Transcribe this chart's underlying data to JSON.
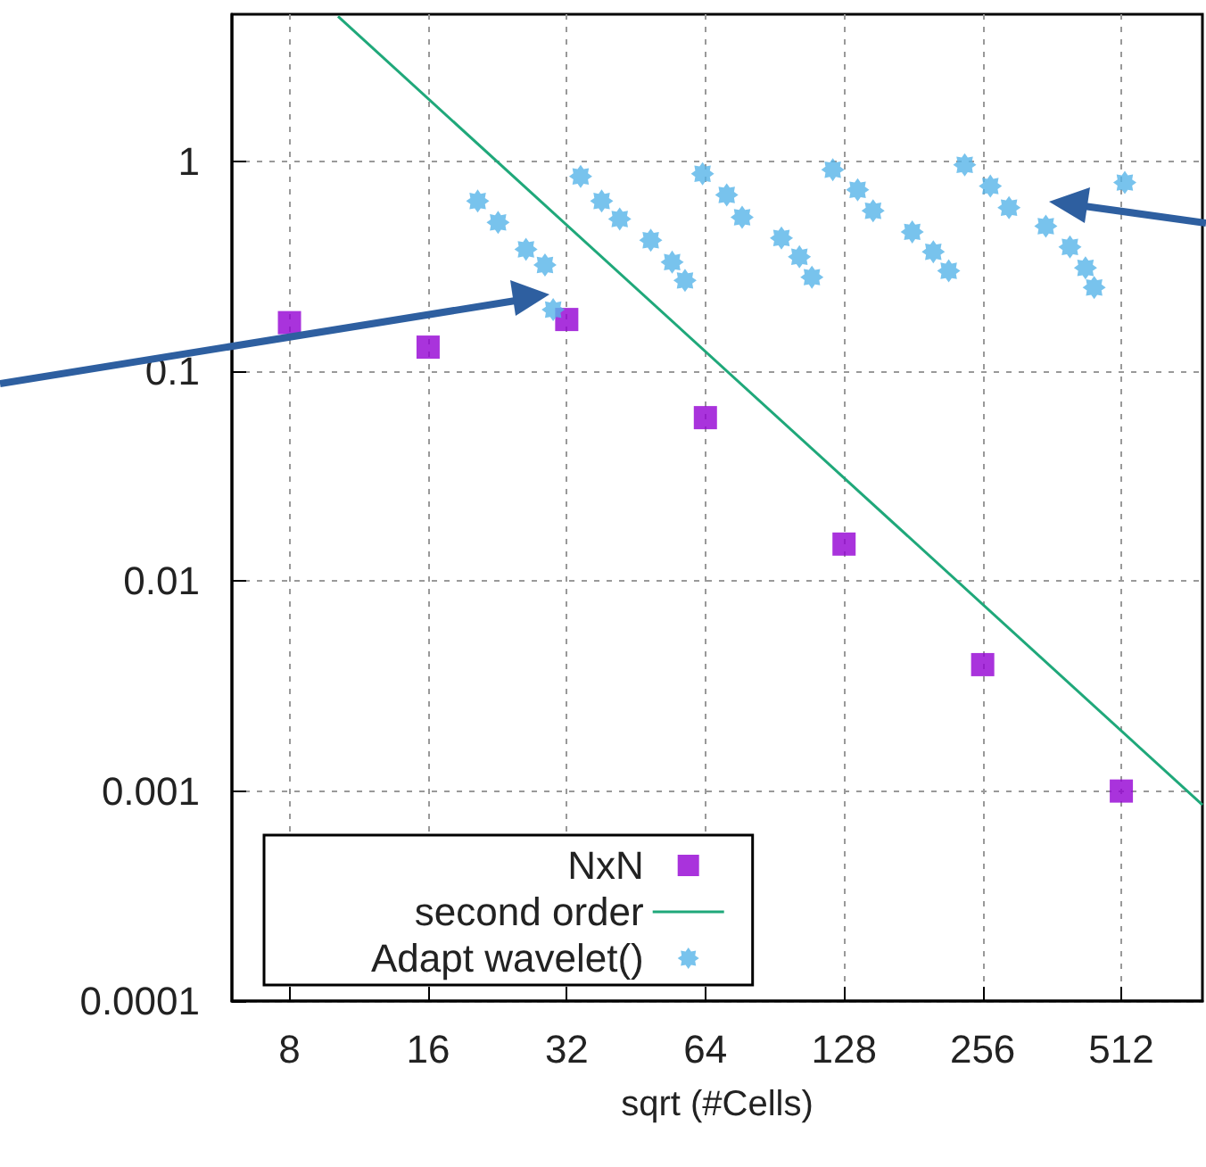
{
  "chart_data": {
    "type": "scatter",
    "xlabel": "sqrt (#Cells)",
    "log": "xy",
    "grid": true,
    "legend": "bottom left",
    "xlim": [
      6,
      768
    ],
    "xticks": [
      8,
      16,
      32,
      64,
      128,
      256,
      512
    ],
    "ylim": [
      0.0001,
      5
    ],
    "yticks": [
      0.0001,
      0.001,
      0.01,
      0.1,
      1
    ],
    "series": [
      {
        "name": "NxN",
        "marker": "square",
        "color": "#9400d3",
        "x": [
          8,
          16,
          32,
          64,
          128,
          256,
          512
        ],
        "values": [
          0.17,
          0.13,
          0.176,
          0.06,
          0.015,
          0.004,
          0.001
        ]
      },
      {
        "name": "second order",
        "type": "line",
        "marker": "none",
        "color": "#1fa87a",
        "x": [
          10.2,
          768
        ],
        "values": [
          4.88,
          0.00086
        ]
      },
      {
        "name": "Adapt wavelet()",
        "marker": "star",
        "color": "#56b4e9",
        "x": [
          20.5,
          22.7,
          26.1,
          28.7,
          29.9,
          34.3,
          38.1,
          41.7,
          48.7,
          54.2,
          57.8,
          63.1,
          71.2,
          76.9,
          93.6,
          102.4,
          109,
          121,
          137,
          148,
          180,
          200,
          216,
          234,
          266,
          292,
          351,
          396,
          428,
          447,
          521
        ],
        "values": [
          0.645,
          0.51,
          0.38,
          0.32,
          0.196,
          0.845,
          0.645,
          0.53,
          0.42,
          0.33,
          0.27,
          0.87,
          0.69,
          0.54,
          0.43,
          0.35,
          0.28,
          0.91,
          0.73,
          0.58,
          0.46,
          0.37,
          0.3,
          0.96,
          0.76,
          0.6,
          0.49,
          0.39,
          0.31,
          0.25,
          0.79
        ]
      }
    ]
  }
}
